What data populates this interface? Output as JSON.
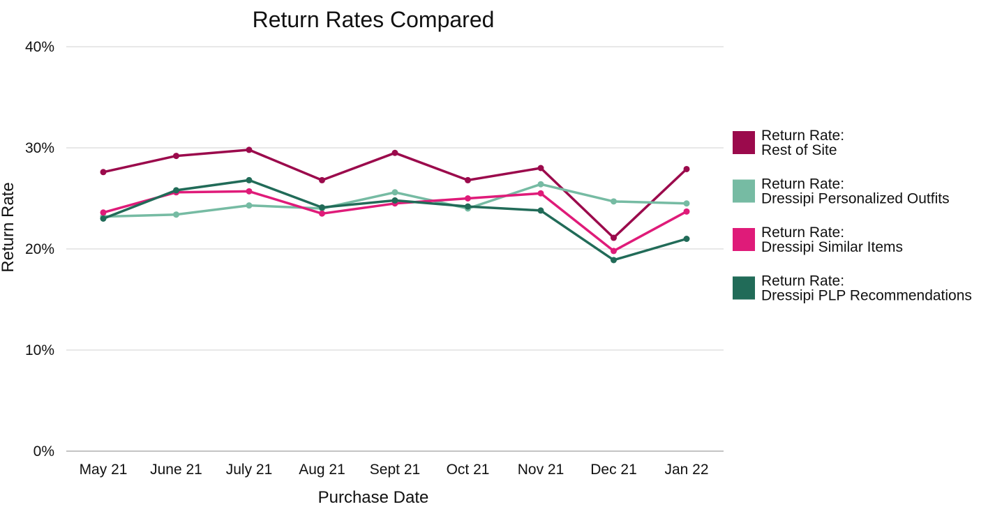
{
  "chart_data": {
    "type": "line",
    "title": "Return Rates Compared",
    "xlabel": "Purchase Date",
    "ylabel": "Return Rate",
    "categories": [
      "May 21",
      "June 21",
      "July 21",
      "Aug 21",
      "Sept 21",
      "Oct 21",
      "Nov 21",
      "Dec 21",
      "Jan 22"
    ],
    "ylim": [
      0,
      40
    ],
    "yticks": [
      0,
      10,
      20,
      30,
      40
    ],
    "ytick_labels": [
      "0%",
      "10%",
      "20%",
      "30%",
      "40%"
    ],
    "grid": true,
    "legend_position": "right",
    "series": [
      {
        "id": "rest",
        "name_line1": "Return Rate:",
        "name_line2": "Rest of Site",
        "color": "#9b0a4c",
        "values": [
          27.6,
          29.2,
          29.8,
          26.8,
          29.5,
          26.8,
          28.0,
          21.1,
          27.9
        ]
      },
      {
        "id": "outfits",
        "name_line1": "Return Rate:",
        "name_line2": "Dressipi Personalized Outfits",
        "color": "#76bba3",
        "values": [
          23.2,
          23.4,
          24.3,
          24.0,
          25.6,
          24.0,
          26.4,
          24.7,
          24.5
        ]
      },
      {
        "id": "similar",
        "name_line1": "Return Rate:",
        "name_line2": "Dressipi Similar Items",
        "color": "#df1b79",
        "values": [
          23.6,
          25.6,
          25.7,
          23.5,
          24.5,
          25.0,
          25.5,
          19.8,
          23.7
        ]
      },
      {
        "id": "plp",
        "name_line1": "Return Rate:",
        "name_line2": "Dressipi PLP Recommendations",
        "color": "#216b58",
        "values": [
          23.0,
          25.8,
          26.8,
          24.1,
          24.8,
          24.2,
          23.8,
          18.9,
          21.0
        ]
      }
    ]
  }
}
